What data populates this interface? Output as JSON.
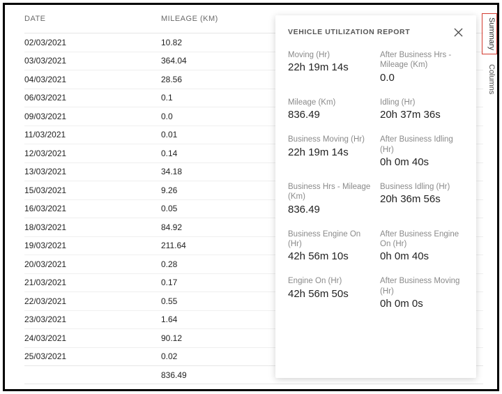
{
  "table": {
    "headers": {
      "date": "DATE",
      "mileage": "MILEAGE (KM)"
    },
    "rows": [
      {
        "date": "02/03/2021",
        "mileage": "10.82"
      },
      {
        "date": "03/03/2021",
        "mileage": "364.04"
      },
      {
        "date": "04/03/2021",
        "mileage": "28.56"
      },
      {
        "date": "06/03/2021",
        "mileage": "0.1"
      },
      {
        "date": "09/03/2021",
        "mileage": "0.0"
      },
      {
        "date": "11/03/2021",
        "mileage": "0.01"
      },
      {
        "date": "12/03/2021",
        "mileage": "0.14"
      },
      {
        "date": "13/03/2021",
        "mileage": "34.18"
      },
      {
        "date": "15/03/2021",
        "mileage": "9.26"
      },
      {
        "date": "16/03/2021",
        "mileage": "0.05"
      },
      {
        "date": "18/03/2021",
        "mileage": "84.92"
      },
      {
        "date": "19/03/2021",
        "mileage": "211.64"
      },
      {
        "date": "20/03/2021",
        "mileage": "0.28"
      },
      {
        "date": "21/03/2021",
        "mileage": "0.17"
      },
      {
        "date": "22/03/2021",
        "mileage": "0.55"
      },
      {
        "date": "23/03/2021",
        "mileage": "1.64"
      },
      {
        "date": "24/03/2021",
        "mileage": "90.12"
      },
      {
        "date": "25/03/2021",
        "mileage": "0.02"
      }
    ],
    "total_mileage": "836.49"
  },
  "panel": {
    "title": "VEHICLE UTILIZATION REPORT",
    "stats": [
      {
        "label": "Moving (Hr)",
        "value": "22h 19m 14s"
      },
      {
        "label": "After Business Hrs - Mileage (Km)",
        "value": "0.0"
      },
      {
        "label": "Mileage (Km)",
        "value": "836.49"
      },
      {
        "label": "Idling (Hr)",
        "value": "20h 37m 36s"
      },
      {
        "label": "Business Moving (Hr)",
        "value": "22h 19m 14s"
      },
      {
        "label": "After Business Idling (Hr)",
        "value": "0h 0m 40s"
      },
      {
        "label": "Business Hrs - Mileage (Km)",
        "value": "836.49"
      },
      {
        "label": "Business Idling (Hr)",
        "value": "20h 36m 56s"
      },
      {
        "label": "Business Engine On (Hr)",
        "value": "42h 56m 10s"
      },
      {
        "label": "After Business Engine On (Hr)",
        "value": "0h 0m 40s"
      },
      {
        "label": "Engine On (Hr)",
        "value": "42h 56m 50s"
      },
      {
        "label": "After Business Moving (Hr)",
        "value": "0h 0m 0s"
      }
    ]
  },
  "side_tabs": {
    "summary": "Summary",
    "columns": "Columns"
  },
  "colors": {
    "border": "#000000",
    "header_text": "#6a6a6a",
    "row_border": "#efefef",
    "text": "#222222",
    "stat_label": "#8a8a8a",
    "active_tab_border": "#d33a2f",
    "panel_shadow": "rgba(0,0,0,0.18)"
  }
}
